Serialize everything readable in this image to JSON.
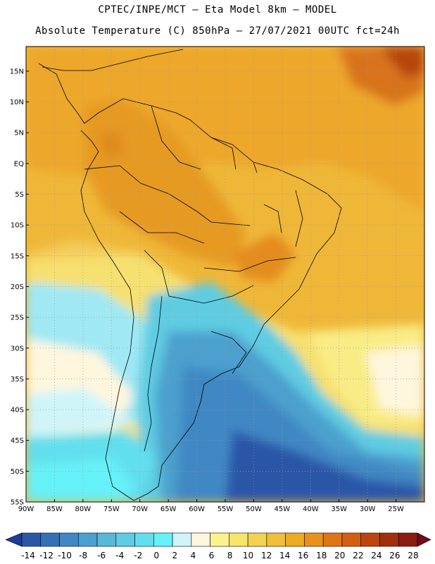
{
  "header": {
    "line1": "CPTEC/INPE/MCT –  Eta Model 8km – MODEL",
    "line2": "Absolute Temperature (C) 850hPa – 27/07/2021 00UTC fct=24h"
  },
  "map": {
    "lat_labels": [
      "15N",
      "10N",
      "5N",
      "EQ",
      "5S",
      "10S",
      "15S",
      "20S",
      "25S",
      "30S",
      "35S",
      "40S",
      "45S",
      "50S",
      "55S"
    ],
    "lon_labels": [
      "90W",
      "85W",
      "80W",
      "75W",
      "70W",
      "65W",
      "60W",
      "55W",
      "50W",
      "45W",
      "40W",
      "35W",
      "30W",
      "25W"
    ],
    "lat_range": [
      -55,
      19
    ],
    "lon_range": [
      -90,
      -20
    ],
    "variable": "Absolute Temperature (C)",
    "level": "850hPa",
    "gridlines": "dotted"
  },
  "colorbar": {
    "labels": [
      "-14",
      "-12",
      "-10",
      "-8",
      "-6",
      "-4",
      "-2",
      "0",
      "2",
      "4",
      "6",
      "8",
      "10",
      "12",
      "14",
      "16",
      "18",
      "20",
      "22",
      "24",
      "26",
      "28"
    ],
    "colors": [
      "#1e3c96",
      "#2a56a8",
      "#3470b6",
      "#3f88c4",
      "#4ba0ce",
      "#58b8d8",
      "#5ecce2",
      "#62dfee",
      "#66f1f8",
      "#cff5f9",
      "#fff6de",
      "#fbf28e",
      "#f7e56a",
      "#f1d252",
      "#efbf3c",
      "#ecac22",
      "#e8921c",
      "#e07518",
      "#d25e12",
      "#bc4510",
      "#a0300c",
      "#8a1e10",
      "#6e0c1c"
    ],
    "extend": "both"
  }
}
